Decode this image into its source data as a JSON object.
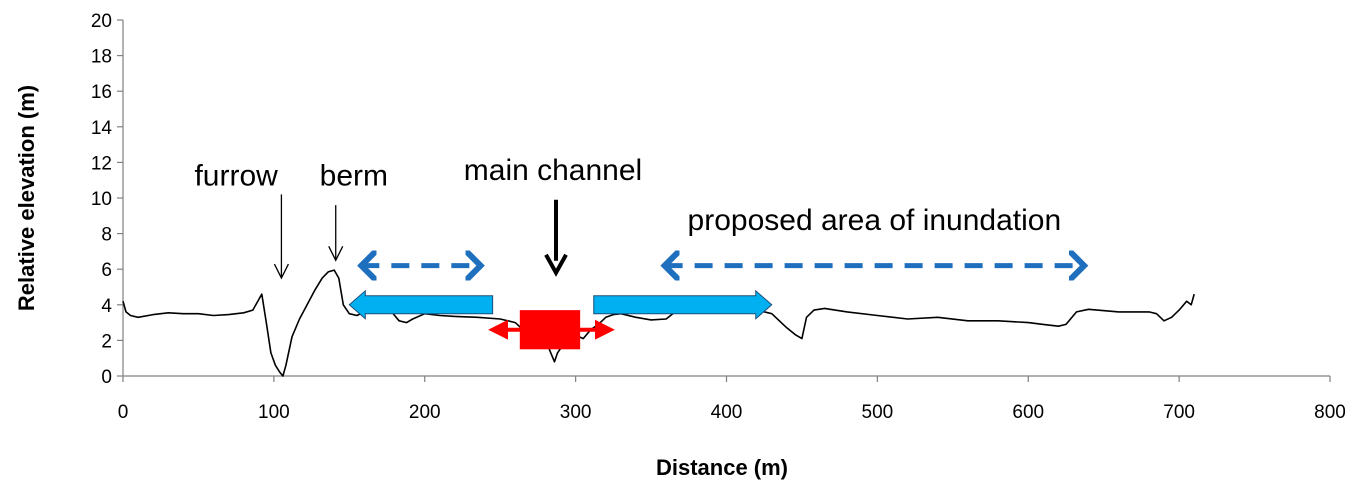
{
  "chart_data": {
    "type": "line",
    "title": "",
    "xlabel": "Distance (m)",
    "ylabel": "Relative elevation (m)",
    "xlim": [
      0,
      800
    ],
    "ylim": [
      0,
      20
    ],
    "xticks": [
      "0",
      "100",
      "200",
      "300",
      "400",
      "500",
      "600",
      "700",
      "800"
    ],
    "yticks": [
      "0",
      "2",
      "4",
      "6",
      "8",
      "10",
      "12",
      "14",
      "16",
      "18",
      "20"
    ],
    "grid": false,
    "legend": "none",
    "series": [
      {
        "color": "#000000",
        "x": [
          0,
          2,
          5,
          10,
          20,
          30,
          40,
          50,
          60,
          70,
          80,
          86,
          90,
          92,
          95,
          98,
          101,
          104,
          106,
          108,
          112,
          117,
          122,
          127,
          132,
          136,
          140,
          143,
          146,
          150,
          155,
          160,
          170,
          178,
          183,
          188,
          192,
          200,
          210,
          220,
          235,
          250,
          260,
          265,
          270,
          275,
          280,
          283,
          286,
          288,
          292,
          295,
          300,
          305,
          310,
          315,
          320,
          325,
          330,
          340,
          350,
          360,
          366,
          368,
          372,
          380,
          390,
          400,
          410,
          420,
          430,
          440,
          446,
          450,
          453,
          458,
          465,
          480,
          500,
          520,
          540,
          560,
          580,
          600,
          610,
          620,
          625,
          632,
          640,
          660,
          680,
          685,
          690,
          695,
          700,
          705,
          708,
          710
        ],
        "y": [
          4.2,
          3.6,
          3.4,
          3.3,
          3.45,
          3.55,
          3.5,
          3.5,
          3.4,
          3.45,
          3.55,
          3.7,
          4.3,
          4.6,
          3.0,
          1.3,
          0.6,
          0.2,
          0.0,
          0.6,
          2.2,
          3.2,
          4.0,
          4.8,
          5.5,
          5.85,
          5.95,
          5.5,
          4.0,
          3.5,
          3.4,
          3.6,
          3.8,
          3.6,
          3.1,
          3.0,
          3.2,
          3.5,
          3.4,
          3.35,
          3.3,
          3.2,
          3.0,
          2.6,
          2.0,
          2.3,
          2.1,
          1.4,
          0.8,
          1.3,
          1.8,
          2.1,
          2.3,
          2.1,
          2.6,
          2.9,
          3.3,
          3.45,
          3.5,
          3.3,
          3.15,
          3.2,
          3.6,
          4.0,
          4.05,
          4.0,
          3.9,
          3.85,
          3.8,
          3.7,
          3.5,
          2.7,
          2.3,
          2.1,
          3.3,
          3.7,
          3.8,
          3.6,
          3.4,
          3.2,
          3.3,
          3.1,
          3.1,
          3.0,
          2.9,
          2.8,
          2.9,
          3.6,
          3.75,
          3.6,
          3.6,
          3.5,
          3.1,
          3.3,
          3.7,
          4.2,
          4.0,
          4.6
        ]
      }
    ],
    "annotations": [
      {
        "text": "furrow",
        "target_x": 105,
        "target_y": 5.5,
        "text_x": 75,
        "text_y": 10.7,
        "tail_y": 10.2
      },
      {
        "text": "berm",
        "target_x": 141,
        "target_y": 6.5,
        "text_x": 153,
        "text_y": 10.7,
        "tail_y": 9.6
      },
      {
        "text": "main channel",
        "target_x": 287,
        "target_y": 5.8,
        "text_x": 285,
        "text_y": 11.0,
        "tail_y": 9.9
      },
      {
        "text": "proposed area of inundation",
        "text_x": 498,
        "text_y": 8.2
      }
    ],
    "arrows": [
      {
        "style": "dashed-double",
        "color": "#1f6fbf",
        "x_from": 154,
        "x_to": 241,
        "y": 6.2
      },
      {
        "style": "dashed-double",
        "color": "#1f6fbf",
        "x_from": 355,
        "x_to": 641,
        "y": 6.2
      },
      {
        "style": "block-left",
        "color": "#00b0f0",
        "x_from": 150,
        "x_to": 245,
        "y": 4.0
      },
      {
        "style": "block-right",
        "color": "#00b0f0",
        "x_from": 312,
        "x_to": 430,
        "y": 4.0
      },
      {
        "style": "thin-double",
        "color": "#ff0000",
        "x_from": 242,
        "x_to": 326,
        "y": 2.6
      }
    ],
    "markers": [
      {
        "shape": "rectangle",
        "color": "#ff0000",
        "x_from": 263,
        "x_to": 303,
        "y_from": 1.5,
        "y_to": 3.7
      }
    ]
  }
}
